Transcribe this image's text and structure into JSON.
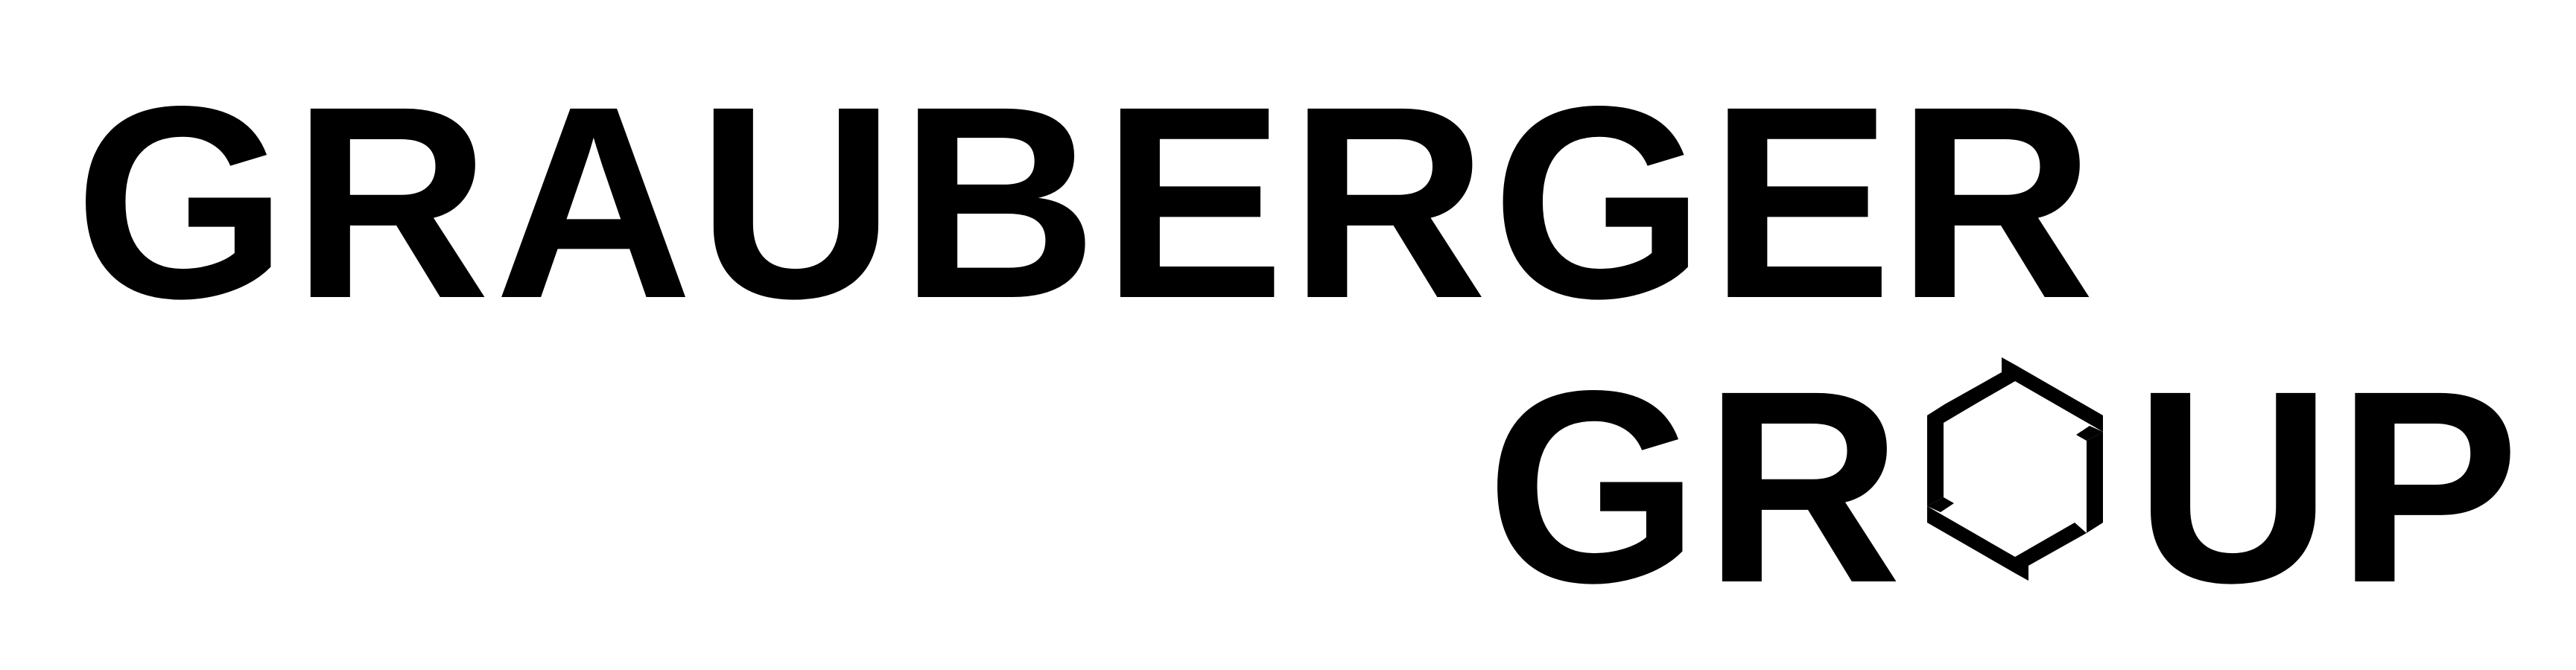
{
  "logo": {
    "line1": "GRAUBERGER",
    "line2_prefix": "GR",
    "line2_suffix": "UP",
    "line2_full": "GROUP",
    "mark_icon": "hexagon-arrows-icon",
    "color": "#000000",
    "background": "#ffffff"
  }
}
